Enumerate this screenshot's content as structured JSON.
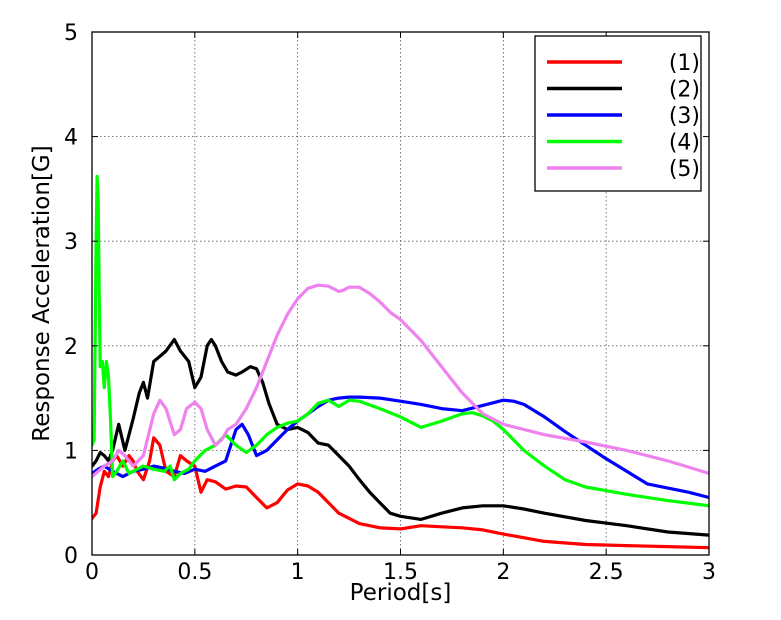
{
  "chart_data": {
    "type": "line",
    "title": "",
    "xlabel": "Period[s]",
    "ylabel": "Response Acceleration[G]",
    "xlim": [
      0,
      3
    ],
    "ylim": [
      0,
      5
    ],
    "xticks": [
      0,
      0.5,
      1,
      1.5,
      2,
      2.5,
      3
    ],
    "yticks": [
      0,
      1,
      2,
      3,
      4,
      5
    ],
    "xtick_labels": [
      "0",
      "0.5",
      "1",
      "1.5",
      "2",
      "2.5",
      "3"
    ],
    "ytick_labels": [
      "0",
      "1",
      "2",
      "3",
      "4",
      "5"
    ],
    "grid": true,
    "legend_position": "top-right",
    "series": [
      {
        "name": "(1)",
        "color": "#ff0000",
        "x": [
          0.0,
          0.02,
          0.04,
          0.06,
          0.08,
          0.1,
          0.12,
          0.15,
          0.18,
          0.2,
          0.22,
          0.25,
          0.28,
          0.3,
          0.33,
          0.36,
          0.4,
          0.43,
          0.46,
          0.5,
          0.53,
          0.56,
          0.6,
          0.65,
          0.7,
          0.75,
          0.8,
          0.85,
          0.9,
          0.95,
          1.0,
          1.05,
          1.1,
          1.15,
          1.2,
          1.3,
          1.4,
          1.5,
          1.6,
          1.7,
          1.8,
          1.9,
          2.0,
          2.2,
          2.4,
          2.6,
          2.8,
          3.0
        ],
        "y": [
          0.35,
          0.4,
          0.65,
          0.8,
          0.75,
          0.9,
          0.95,
          0.85,
          0.95,
          0.9,
          0.8,
          0.72,
          0.9,
          1.12,
          1.05,
          0.8,
          0.75,
          0.95,
          0.9,
          0.85,
          0.6,
          0.72,
          0.7,
          0.63,
          0.66,
          0.65,
          0.55,
          0.45,
          0.5,
          0.62,
          0.68,
          0.66,
          0.6,
          0.5,
          0.4,
          0.3,
          0.26,
          0.25,
          0.28,
          0.27,
          0.26,
          0.24,
          0.2,
          0.13,
          0.1,
          0.09,
          0.08,
          0.07
        ]
      },
      {
        "name": "(2)",
        "color": "#000000",
        "x": [
          0.0,
          0.02,
          0.04,
          0.06,
          0.08,
          0.1,
          0.13,
          0.16,
          0.2,
          0.23,
          0.25,
          0.27,
          0.3,
          0.33,
          0.36,
          0.4,
          0.43,
          0.47,
          0.5,
          0.53,
          0.56,
          0.58,
          0.6,
          0.63,
          0.66,
          0.7,
          0.73,
          0.77,
          0.8,
          0.83,
          0.86,
          0.9,
          0.95,
          1.0,
          1.05,
          1.1,
          1.15,
          1.2,
          1.25,
          1.3,
          1.35,
          1.4,
          1.45,
          1.5,
          1.6,
          1.7,
          1.8,
          1.9,
          2.0,
          2.1,
          2.2,
          2.4,
          2.6,
          2.8,
          3.0
        ],
        "y": [
          0.85,
          0.9,
          0.98,
          0.95,
          0.9,
          1.0,
          1.25,
          1.0,
          1.3,
          1.55,
          1.65,
          1.5,
          1.85,
          1.9,
          1.95,
          2.06,
          1.95,
          1.85,
          1.6,
          1.7,
          2.0,
          2.06,
          2.0,
          1.85,
          1.75,
          1.72,
          1.75,
          1.8,
          1.78,
          1.65,
          1.45,
          1.25,
          1.2,
          1.22,
          1.17,
          1.07,
          1.05,
          0.95,
          0.85,
          0.72,
          0.6,
          0.5,
          0.4,
          0.37,
          0.34,
          0.4,
          0.45,
          0.47,
          0.47,
          0.44,
          0.4,
          0.33,
          0.28,
          0.22,
          0.19
        ]
      },
      {
        "name": "(3)",
        "color": "#0000ff",
        "x": [
          0.0,
          0.03,
          0.06,
          0.1,
          0.15,
          0.2,
          0.25,
          0.3,
          0.35,
          0.4,
          0.45,
          0.5,
          0.55,
          0.6,
          0.65,
          0.7,
          0.73,
          0.76,
          0.8,
          0.85,
          0.9,
          0.95,
          1.0,
          1.05,
          1.1,
          1.15,
          1.2,
          1.25,
          1.3,
          1.4,
          1.5,
          1.6,
          1.7,
          1.8,
          1.9,
          2.0,
          2.05,
          2.1,
          2.2,
          2.3,
          2.4,
          2.5,
          2.6,
          2.7,
          2.8,
          2.9,
          3.0
        ],
        "y": [
          0.78,
          0.82,
          0.85,
          0.8,
          0.75,
          0.8,
          0.82,
          0.85,
          0.83,
          0.8,
          0.78,
          0.82,
          0.8,
          0.85,
          0.9,
          1.2,
          1.25,
          1.15,
          0.95,
          1.0,
          1.1,
          1.2,
          1.28,
          1.35,
          1.42,
          1.48,
          1.5,
          1.51,
          1.51,
          1.5,
          1.47,
          1.44,
          1.4,
          1.38,
          1.43,
          1.48,
          1.47,
          1.44,
          1.32,
          1.18,
          1.05,
          0.92,
          0.8,
          0.68,
          0.64,
          0.6,
          0.55
        ]
      },
      {
        "name": "(4)",
        "color": "#00ff00",
        "x": [
          0.0,
          0.01,
          0.02,
          0.025,
          0.03,
          0.035,
          0.04,
          0.05,
          0.06,
          0.07,
          0.08,
          0.09,
          0.1,
          0.12,
          0.15,
          0.18,
          0.2,
          0.22,
          0.25,
          0.3,
          0.35,
          0.38,
          0.4,
          0.43,
          0.47,
          0.5,
          0.55,
          0.6,
          0.65,
          0.7,
          0.75,
          0.8,
          0.85,
          0.9,
          0.95,
          1.0,
          1.05,
          1.1,
          1.15,
          1.2,
          1.25,
          1.3,
          1.4,
          1.5,
          1.6,
          1.7,
          1.8,
          1.85,
          1.9,
          1.95,
          2.0,
          2.1,
          2.2,
          2.3,
          2.4,
          2.6,
          2.8,
          3.0
        ],
        "y": [
          1.05,
          1.1,
          3.0,
          3.62,
          3.4,
          2.5,
          1.8,
          1.85,
          1.6,
          1.85,
          1.7,
          1.3,
          0.75,
          0.8,
          0.9,
          0.78,
          0.8,
          0.82,
          0.85,
          0.82,
          0.8,
          0.85,
          0.72,
          0.78,
          0.82,
          0.9,
          1.0,
          1.05,
          1.15,
          1.05,
          0.98,
          1.05,
          1.15,
          1.22,
          1.26,
          1.28,
          1.35,
          1.45,
          1.48,
          1.42,
          1.48,
          1.47,
          1.4,
          1.32,
          1.22,
          1.28,
          1.35,
          1.36,
          1.33,
          1.28,
          1.2,
          1.0,
          0.85,
          0.72,
          0.65,
          0.58,
          0.52,
          0.47
        ]
      },
      {
        "name": "(5)",
        "color": "#ee82ee",
        "x": [
          0.0,
          0.03,
          0.06,
          0.1,
          0.13,
          0.16,
          0.2,
          0.25,
          0.3,
          0.33,
          0.36,
          0.4,
          0.43,
          0.46,
          0.5,
          0.53,
          0.56,
          0.6,
          0.63,
          0.66,
          0.7,
          0.75,
          0.8,
          0.85,
          0.9,
          0.95,
          1.0,
          1.05,
          1.1,
          1.15,
          1.2,
          1.22,
          1.25,
          1.3,
          1.35,
          1.4,
          1.45,
          1.5,
          1.6,
          1.7,
          1.8,
          1.9,
          2.0,
          2.2,
          2.4,
          2.6,
          2.8,
          3.0
        ],
        "y": [
          0.75,
          0.8,
          0.85,
          0.9,
          1.0,
          0.95,
          0.85,
          0.95,
          1.35,
          1.48,
          1.4,
          1.15,
          1.2,
          1.4,
          1.46,
          1.4,
          1.2,
          1.05,
          1.1,
          1.2,
          1.25,
          1.4,
          1.6,
          1.85,
          2.1,
          2.3,
          2.45,
          2.55,
          2.58,
          2.57,
          2.52,
          2.53,
          2.56,
          2.56,
          2.5,
          2.42,
          2.32,
          2.25,
          2.05,
          1.8,
          1.55,
          1.35,
          1.25,
          1.15,
          1.08,
          1.0,
          0.9,
          0.78
        ]
      }
    ]
  }
}
